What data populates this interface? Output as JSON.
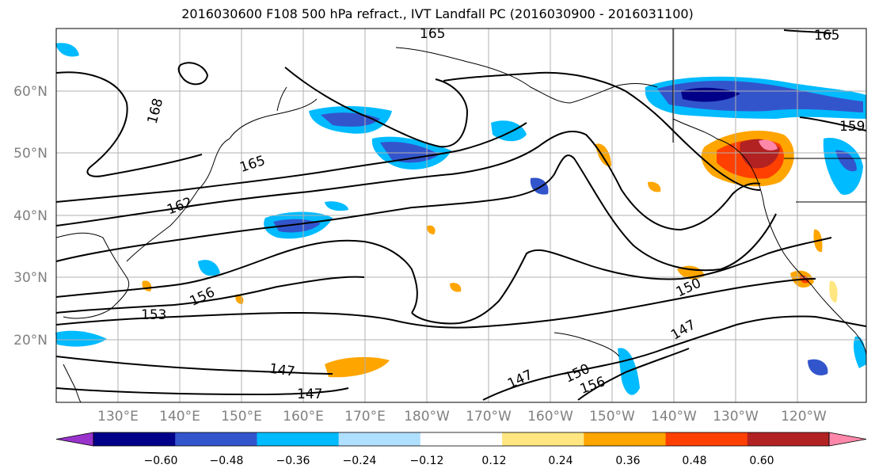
{
  "title": "2016030600 F108 500 hPa refract., IVT Landfall PC (2016030900 - 2016031100)",
  "lat_labels": [
    "60°N",
    "50°N",
    "40°N",
    "30°N",
    "20°N"
  ],
  "lon_labels": [
    "130°E",
    "140°E",
    "150°E",
    "160°E",
    "170°E",
    "180°W",
    "170°W",
    "160°W",
    "150°W",
    "140°W",
    "130°W",
    "120°W"
  ],
  "contour_labels": [
    "165",
    "165",
    "168",
    "165",
    "162",
    "159",
    "156",
    "153",
    "150",
    "147",
    "147",
    "147",
    "147",
    "150",
    "156"
  ],
  "colorbar": {
    "ticks": [
      "−0.60",
      "−0.48",
      "−0.36",
      "−0.24",
      "−0.12",
      "0.12",
      "0.24",
      "0.36",
      "0.48",
      "0.60"
    ],
    "colors": [
      "#9933cc",
      "#000088",
      "#3355cc",
      "#00bbff",
      "#b0e0ff",
      "#ffffff",
      "#ffe680",
      "#ffa500",
      "#ff4000",
      "#b22222",
      "#ff88aa"
    ]
  }
}
